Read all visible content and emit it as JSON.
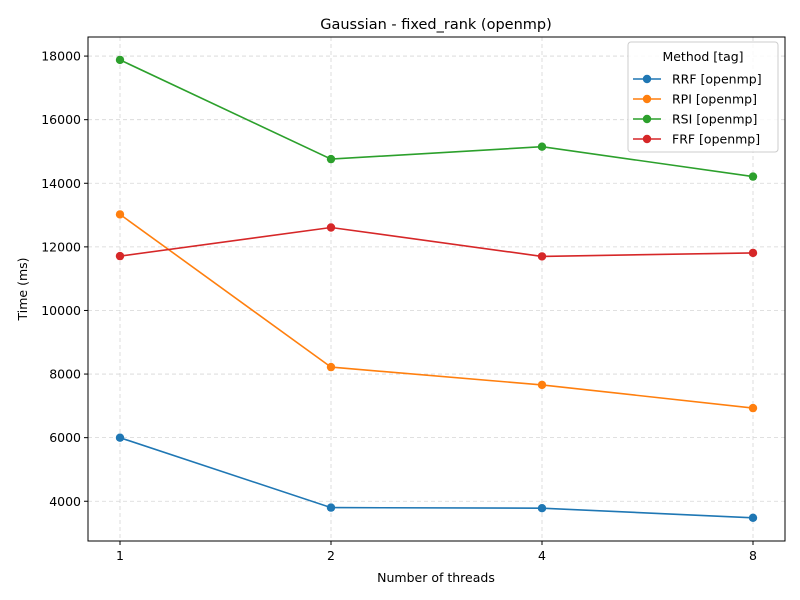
{
  "chart_data": {
    "type": "line",
    "title": "Gaussian - fixed_rank (openmp)",
    "xlabel": "Number of threads",
    "ylabel": "Time (ms)",
    "categories": [
      "1",
      "2",
      "4",
      "8"
    ],
    "yticks": [
      "4000",
      "6000",
      "8000",
      "10000",
      "12000",
      "14000",
      "16000",
      "18000"
    ],
    "ylim": [
      2750,
      18600
    ],
    "grid": true,
    "legend": {
      "title": "Method [tag]",
      "placement": "top-right"
    },
    "series": [
      {
        "name": "RRF [openmp]",
        "color": "#1f77b4",
        "values": [
          6000,
          3800,
          3780,
          3480
        ]
      },
      {
        "name": "RPI [openmp]",
        "color": "#ff7f0e",
        "values": [
          13020,
          8220,
          7660,
          6930
        ]
      },
      {
        "name": "RSI [openmp]",
        "color": "#2ca02c",
        "values": [
          17880,
          14760,
          15150,
          14210
        ]
      },
      {
        "name": "FRF [openmp]",
        "color": "#d62728",
        "values": [
          11710,
          12610,
          11700,
          11810
        ]
      }
    ]
  }
}
